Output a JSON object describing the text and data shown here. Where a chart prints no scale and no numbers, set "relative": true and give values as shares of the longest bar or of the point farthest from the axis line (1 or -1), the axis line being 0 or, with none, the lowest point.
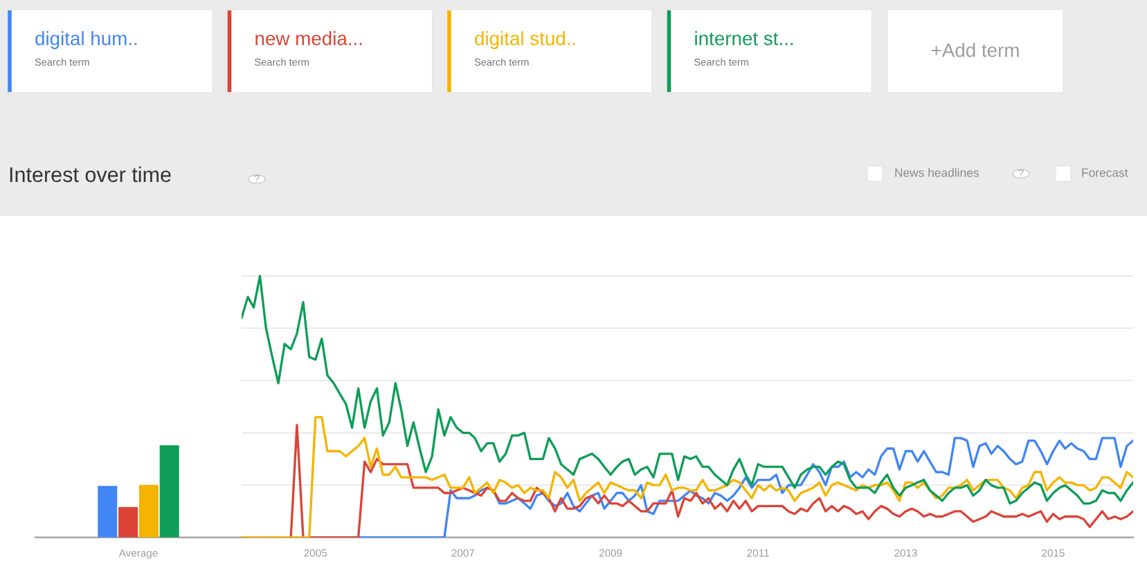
{
  "chart_data": [
    {
      "type": "bar",
      "title": "Interest over time",
      "relative": true,
      "categories": [
        "Average"
      ],
      "series": [
        {
          "color": "#4285f4",
          "values": [
            0.56
          ]
        },
        {
          "color": "#db4437",
          "values": [
            0.33
          ]
        },
        {
          "color": "#f4b400",
          "values": [
            0.57
          ]
        },
        {
          "color": "#0f9d58",
          "values": [
            1.0
          ]
        }
      ]
    },
    {
      "type": "line",
      "relative": true,
      "legend": "top",
      "grid": "y",
      "annotations": [
        "Search term",
        "+Add term",
        "?",
        "News headlines",
        "Forecast"
      ],
      "xlim": [
        "2004-01",
        "2016-02"
      ],
      "xticks": [
        "2005",
        "2007",
        "2009",
        "2011",
        "2013",
        "2015"
      ],
      "x": [
        "2004-01",
        "2004-02",
        "2004-03",
        "2004-04",
        "2004-05",
        "2004-06",
        "2004-07",
        "2004-08",
        "2004-09",
        "2004-10",
        "2004-11",
        "2004-12",
        "2005-01",
        "2005-02",
        "2005-03",
        "2005-04",
        "2005-05",
        "2005-06",
        "2005-07",
        "2005-08",
        "2005-09",
        "2005-10",
        "2005-11",
        "2005-12",
        "2006-01",
        "2006-02",
        "2006-03",
        "2006-04",
        "2006-05",
        "2006-06",
        "2006-07",
        "2006-08",
        "2006-09",
        "2006-10",
        "2006-11",
        "2006-12",
        "2007-01",
        "2007-02",
        "2007-03",
        "2007-04",
        "2007-05",
        "2007-06",
        "2007-07",
        "2007-08",
        "2007-09",
        "2007-10",
        "2007-11",
        "2007-12",
        "2008-01",
        "2008-02",
        "2008-03",
        "2008-04",
        "2008-05",
        "2008-06",
        "2008-07",
        "2008-08",
        "2008-09",
        "2008-10",
        "2008-11",
        "2008-12",
        "2009-01",
        "2009-02",
        "2009-03",
        "2009-04",
        "2009-05",
        "2009-06",
        "2009-07",
        "2009-08",
        "2009-09",
        "2009-10",
        "2009-11",
        "2009-12",
        "2010-01",
        "2010-02",
        "2010-03",
        "2010-04",
        "2010-05",
        "2010-06",
        "2010-07",
        "2010-08",
        "2010-09",
        "2010-10",
        "2010-11",
        "2010-12",
        "2011-01",
        "2011-02",
        "2011-03",
        "2011-04",
        "2011-05",
        "2011-06",
        "2011-07",
        "2011-08",
        "2011-09",
        "2011-10",
        "2011-11",
        "2011-12",
        "2012-01",
        "2012-02",
        "2012-03",
        "2012-04",
        "2012-05",
        "2012-06",
        "2012-07",
        "2012-08",
        "2012-09",
        "2012-10",
        "2012-11",
        "2012-12",
        "2013-01",
        "2013-02",
        "2013-03",
        "2013-04",
        "2013-05",
        "2013-06",
        "2013-07",
        "2013-08",
        "2013-09",
        "2013-10",
        "2013-11",
        "2013-12",
        "2014-01",
        "2014-02",
        "2014-03",
        "2014-04",
        "2014-05",
        "2014-06",
        "2014-07",
        "2014-08",
        "2014-09",
        "2014-10",
        "2014-11",
        "2014-12",
        "2015-01",
        "2015-02",
        "2015-03",
        "2015-04",
        "2015-05",
        "2015-06",
        "2015-07",
        "2015-08",
        "2015-09",
        "2015-10",
        "2015-11",
        "2015-12",
        "2016-01",
        "2016-02"
      ],
      "series": [
        {
          "name": "digital hum..",
          "color": "#4285f4",
          "values": [
            null,
            null,
            null,
            null,
            null,
            null,
            null,
            null,
            null,
            null,
            null,
            null,
            null,
            null,
            null,
            null,
            null,
            null,
            0,
            0,
            0,
            0,
            0,
            0,
            0,
            0,
            0,
            0,
            0,
            0,
            0,
            0,
            0,
            0,
            0.18,
            0.15,
            0.15,
            0.15,
            0.16,
            0.18,
            0.19,
            0.18,
            0.13,
            0.13,
            0.14,
            0.15,
            0.13,
            0.11,
            0.16,
            0.17,
            0.14,
            0.12,
            0.13,
            0.17,
            0.12,
            0.1,
            0.13,
            0.16,
            0.17,
            0.11,
            0.14,
            0.17,
            0.17,
            0.14,
            0.16,
            0.2,
            0.1,
            0.09,
            0.14,
            0.14,
            0.14,
            0.14,
            0.16,
            0.18,
            0.16,
            0.15,
            0.13,
            0.17,
            0.16,
            0.14,
            0.16,
            0.19,
            0.23,
            0.19,
            0.22,
            0.22,
            0.22,
            0.24,
            0.17,
            0.2,
            0.2,
            0.2,
            0.24,
            0.28,
            0.25,
            0.2,
            0.27,
            0.27,
            0.29,
            0.23,
            0.25,
            0.23,
            0.26,
            0.24,
            0.31,
            0.34,
            0.34,
            0.26,
            0.33,
            0.33,
            0.29,
            0.33,
            0.29,
            0.25,
            0.25,
            0.24,
            0.38,
            0.38,
            0.37,
            0.27,
            0.35,
            0.36,
            0.32,
            0.35,
            0.33,
            0.3,
            0.28,
            0.29,
            0.37,
            0.37,
            0.33,
            0.28,
            0.33,
            0.37,
            0.34,
            0.36,
            0.34,
            0.33,
            0.3,
            0.3,
            0.38,
            0.38,
            0.38,
            0.27,
            0.35,
            0.37
          ]
        },
        {
          "name": "new media...",
          "color": "#db4437",
          "values": [
            null,
            null,
            null,
            null,
            null,
            null,
            null,
            0,
            0,
            0.43,
            0,
            0,
            0,
            0,
            0,
            0,
            0,
            0,
            0,
            0,
            0.29,
            0.25,
            0.3,
            0.28,
            0.28,
            0.28,
            0.28,
            0.28,
            0.19,
            0.19,
            0.19,
            0.19,
            0.19,
            0.17,
            0.17,
            0.18,
            0.19,
            0.18,
            0.17,
            0.16,
            0.19,
            0.18,
            0.14,
            0.14,
            0.17,
            0.15,
            0.14,
            0.14,
            0.19,
            0.17,
            0.15,
            0.1,
            0.15,
            0.11,
            0.11,
            0.12,
            0.15,
            0.16,
            0.13,
            0.16,
            0.13,
            0.13,
            0.12,
            0.14,
            0.12,
            0.1,
            0.1,
            0.13,
            0.13,
            0.13,
            0.18,
            0.08,
            0.15,
            0.14,
            0.17,
            0.13,
            0.15,
            0.11,
            0.13,
            0.1,
            0.14,
            0.11,
            0.14,
            0.1,
            0.12,
            0.12,
            0.12,
            0.12,
            0.12,
            0.1,
            0.09,
            0.11,
            0.1,
            0.13,
            0.15,
            0.1,
            0.12,
            0.1,
            0.12,
            0.11,
            0.09,
            0.1,
            0.07,
            0.1,
            0.12,
            0.11,
            0.09,
            0.08,
            0.1,
            0.11,
            0.1,
            0.08,
            0.09,
            0.08,
            0.08,
            0.09,
            0.1,
            0.1,
            0.08,
            0.06,
            0.07,
            0.08,
            0.1,
            0.09,
            0.08,
            0.08,
            0.08,
            0.09,
            0.08,
            0.09,
            0.1,
            0.06,
            0.09,
            0.07,
            0.08,
            0.08,
            0.08,
            0.07,
            0.04,
            0.07,
            0.1,
            0.07,
            0.08,
            0.07,
            0.08,
            0.1
          ]
        },
        {
          "name": "digital stud..",
          "color": "#f4b400",
          "values": [
            0,
            0,
            0,
            0,
            0,
            0,
            0,
            0,
            0,
            0,
            0,
            0,
            0.46,
            0.46,
            0.33,
            0.33,
            0.33,
            0.31,
            0.33,
            0.35,
            0.38,
            0.27,
            0.34,
            0.24,
            0.24,
            0.27,
            0.23,
            0.23,
            0.23,
            0.23,
            0.23,
            0.22,
            0.23,
            0.24,
            0.19,
            0.19,
            0.19,
            0.23,
            0.17,
            0.19,
            0.21,
            0.17,
            0.22,
            0.21,
            0.19,
            0.2,
            0.17,
            0.19,
            0.18,
            0.18,
            0.15,
            0.25,
            0.23,
            0.19,
            0.22,
            0.14,
            0.17,
            0.19,
            0.21,
            0.17,
            0.21,
            0.2,
            0.19,
            0.18,
            0.18,
            0.15,
            0.21,
            0.2,
            0.2,
            0.24,
            0.18,
            0.19,
            0.19,
            0.18,
            0.18,
            0.22,
            0.18,
            0.18,
            0.19,
            0.2,
            0.22,
            0.21,
            0.18,
            0.15,
            0.2,
            0.18,
            0.2,
            0.18,
            0.19,
            0.18,
            0.14,
            0.17,
            0.18,
            0.19,
            0.21,
            0.16,
            0.2,
            0.21,
            0.2,
            0.19,
            0.18,
            0.2,
            0.19,
            0.2,
            0.2,
            0.21,
            0.18,
            0.14,
            0.21,
            0.21,
            0.19,
            0.21,
            0.18,
            0.15,
            0.16,
            0.19,
            0.19,
            0.2,
            0.22,
            0.18,
            0.2,
            0.22,
            0.22,
            0.22,
            0.19,
            0.18,
            0.15,
            0.19,
            0.2,
            0.25,
            0.25,
            0.18,
            0.21,
            0.23,
            0.21,
            0.21,
            0.2,
            0.2,
            0.18,
            0.19,
            0.23,
            0.23,
            0.21,
            0.19,
            0.25,
            0.23
          ]
        },
        {
          "name": "internet st...",
          "color": "#0f9d58",
          "values": [
            0.84,
            0.92,
            0.88,
            1.0,
            0.8,
            0.69,
            0.59,
            0.74,
            0.72,
            0.78,
            0.9,
            0.69,
            0.68,
            0.76,
            0.62,
            0.59,
            0.55,
            0.51,
            0.42,
            0.57,
            0.42,
            0.52,
            0.57,
            0.39,
            0.44,
            0.59,
            0.49,
            0.35,
            0.44,
            0.34,
            0.25,
            0.31,
            0.49,
            0.39,
            0.46,
            0.42,
            0.4,
            0.4,
            0.38,
            0.33,
            0.36,
            0.36,
            0.29,
            0.32,
            0.39,
            0.39,
            0.4,
            0.3,
            0.3,
            0.3,
            0.38,
            0.34,
            0.28,
            0.26,
            0.24,
            0.3,
            0.31,
            0.32,
            0.3,
            0.27,
            0.24,
            0.27,
            0.29,
            0.3,
            0.24,
            0.26,
            0.27,
            0.23,
            0.32,
            0.32,
            0.32,
            0.22,
            0.31,
            0.3,
            0.31,
            0.27,
            0.27,
            0.24,
            0.22,
            0.2,
            0.26,
            0.3,
            0.24,
            0.2,
            0.28,
            0.27,
            0.27,
            0.27,
            0.27,
            0.23,
            0.19,
            0.24,
            0.26,
            0.27,
            0.27,
            0.24,
            0.27,
            0.29,
            0.28,
            0.22,
            0.19,
            0.19,
            0.19,
            0.17,
            0.21,
            0.24,
            0.19,
            0.16,
            0.19,
            0.2,
            0.21,
            0.22,
            0.18,
            0.16,
            0.14,
            0.17,
            0.19,
            0.19,
            0.2,
            0.16,
            0.18,
            0.22,
            0.2,
            0.19,
            0.19,
            0.13,
            0.14,
            0.17,
            0.19,
            0.21,
            0.2,
            0.14,
            0.17,
            0.19,
            0.2,
            0.18,
            0.16,
            0.13,
            0.13,
            0.14,
            0.18,
            0.17,
            0.17,
            0.14,
            0.18,
            0.21
          ]
        }
      ]
    }
  ]
}
